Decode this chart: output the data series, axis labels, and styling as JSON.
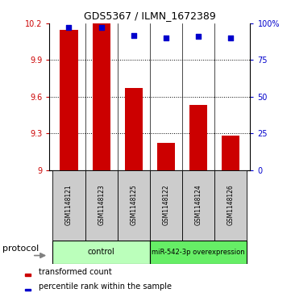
{
  "title": "GDS5367 / ILMN_1672389",
  "samples": [
    "GSM1148121",
    "GSM1148123",
    "GSM1148125",
    "GSM1148122",
    "GSM1148124",
    "GSM1148126"
  ],
  "transformed_counts": [
    10.15,
    10.2,
    9.67,
    9.22,
    9.53,
    9.28
  ],
  "percentile_ranks": [
    97,
    97,
    92,
    90,
    91,
    90
  ],
  "groups": [
    {
      "label": "control",
      "indices": [
        0,
        1,
        2
      ],
      "color": "#bbffbb"
    },
    {
      "label": "miR-542-3p overexpression",
      "indices": [
        3,
        4,
        5
      ],
      "color": "#66ee66"
    }
  ],
  "ylim_left": [
    9.0,
    10.2
  ],
  "ylim_right": [
    0,
    100
  ],
  "yticks_left": [
    9.0,
    9.3,
    9.6,
    9.9,
    10.2
  ],
  "yticks_right": [
    0,
    25,
    50,
    75,
    100
  ],
  "ytick_labels_left": [
    "9",
    "9.3",
    "9.6",
    "9.9",
    "10.2"
  ],
  "ytick_labels_right": [
    "0",
    "25",
    "50",
    "75",
    "100%"
  ],
  "bar_color": "#cc0000",
  "dot_color": "#0000cc",
  "bar_width": 0.55,
  "background_color": "#ffffff",
  "label_area_color": "#cccccc",
  "protocol_label": "protocol",
  "legend_bar": "transformed count",
  "legend_dot": "percentile rank within the sample",
  "title_fontsize": 9,
  "tick_fontsize": 7,
  "sample_fontsize": 5.5,
  "group_fontsize": 7,
  "legend_fontsize": 7,
  "protocol_fontsize": 8
}
